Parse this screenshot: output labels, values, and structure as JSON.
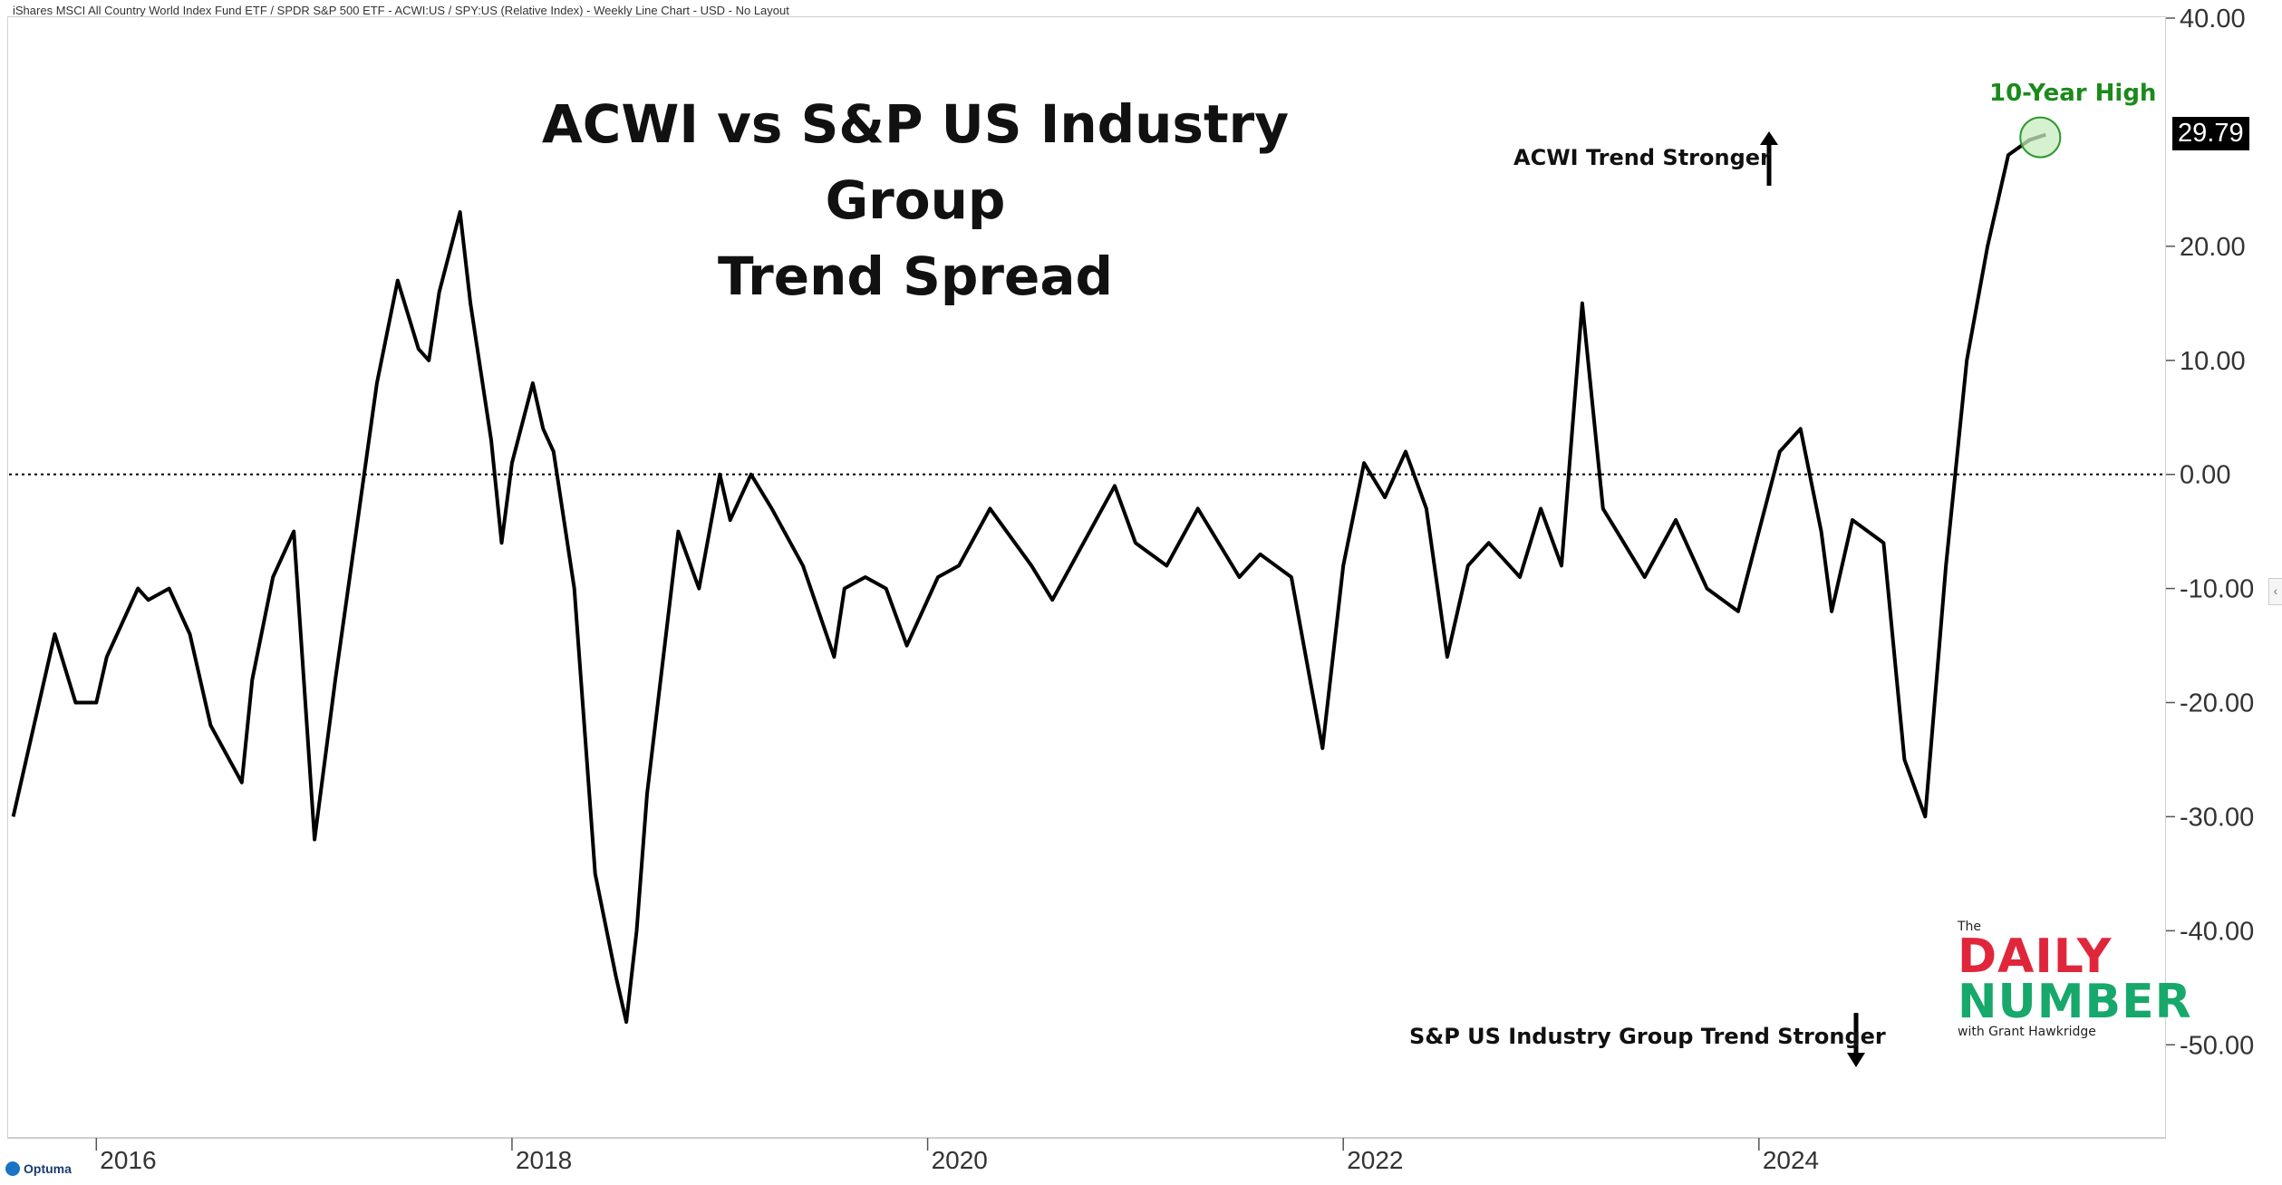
{
  "header": {
    "description": "iShares MSCI All Country World Index Fund ETF / SPDR S&P 500 ETF - ACWI:US / SPY:US (Relative Index) - Weekly Line Chart - USD - No Layout"
  },
  "footer": {
    "brand": "Optuma"
  },
  "annotations": {
    "up_text": "ACWI Trend Stronger",
    "down_text": "S&P US Industry Group Trend Stronger",
    "high_label": "10-Year High",
    "last_value": "29.79"
  },
  "branding": {
    "the": "The",
    "daily": "DAILY",
    "number": "NUMBER",
    "with": "with Grant Hawkridge"
  },
  "colors": {
    "line": "#000000",
    "high_marker": "#1b8a1b",
    "daily": "#e0263b",
    "number": "#17a86b"
  },
  "chart_data": {
    "type": "line",
    "title": [
      "ACWI vs S&P US Industry Group",
      "Trend Spread"
    ],
    "xlabel": "",
    "ylabel": "",
    "ylim": [
      -58,
      40
    ],
    "yticks": [
      "40.00",
      "20.00",
      "10.00",
      "0.00",
      "-10.00",
      "-20.00",
      "-30.00",
      "-40.00",
      "-50.00"
    ],
    "ytick_values": [
      40,
      20,
      10,
      0,
      -10,
      -20,
      -30,
      -40,
      -50
    ],
    "xticks": [
      "2016",
      "2018",
      "2020",
      "2022",
      "2024"
    ],
    "xtick_values": [
      2016.0,
      2018.0,
      2020.0,
      2022.0,
      2024.0
    ],
    "xlim": [
      2015.58,
      2025.95
    ],
    "zero_line": "dotted",
    "series": [
      {
        "name": "",
        "x": [
          2015.6,
          2015.7,
          2015.8,
          2015.9,
          2016.0,
          2016.05,
          2016.2,
          2016.25,
          2016.35,
          2016.45,
          2016.55,
          2016.7,
          2016.75,
          2016.85,
          2016.95,
          2017.05,
          2017.15,
          2017.25,
          2017.35,
          2017.45,
          2017.55,
          2017.6,
          2017.65,
          2017.75,
          2017.8,
          2017.9,
          2017.95,
          2018.0,
          2018.1,
          2018.15,
          2018.2,
          2018.3,
          2018.4,
          2018.5,
          2018.55,
          2018.6,
          2018.65,
          2018.8,
          2018.9,
          2019.0,
          2019.05,
          2019.15,
          2019.25,
          2019.4,
          2019.55,
          2019.6,
          2019.7,
          2019.8,
          2019.9,
          2020.05,
          2020.15,
          2020.3,
          2020.5,
          2020.6,
          2020.75,
          2020.9,
          2021.0,
          2021.15,
          2021.3,
          2021.5,
          2021.6,
          2021.75,
          2021.9,
          2022.0,
          2022.1,
          2022.2,
          2022.3,
          2022.4,
          2022.5,
          2022.6,
          2022.7,
          2022.85,
          2022.95,
          2023.05,
          2023.15,
          2023.25,
          2023.35,
          2023.45,
          2023.6,
          2023.75,
          2023.9,
          2024.0,
          2024.1,
          2024.2,
          2024.3,
          2024.35,
          2024.45,
          2024.6,
          2024.7,
          2024.8,
          2024.9,
          2025.0,
          2025.1,
          2025.2,
          2025.3,
          2025.38
        ],
        "y": [
          -30,
          -22,
          -14,
          -20,
          -20,
          -16,
          -10,
          -11,
          -10,
          -14,
          -22,
          -27,
          -18,
          -9,
          -5,
          -32,
          -18,
          -5,
          8,
          17,
          11,
          10,
          16,
          23,
          15,
          3,
          -6,
          1,
          8,
          4,
          2,
          -10,
          -35,
          -44,
          -48,
          -40,
          -28,
          -5,
          -10,
          0,
          -4,
          0,
          -3,
          -8,
          -16,
          -10,
          -9,
          -10,
          -15,
          -9,
          -8,
          -3,
          -8,
          -11,
          -6,
          -1,
          -6,
          -8,
          -3,
          -9,
          -7,
          -9,
          -24,
          -8,
          1,
          -2,
          2,
          -3,
          -16,
          -8,
          -6,
          -9,
          -3,
          -8,
          15,
          -3,
          -6,
          -9,
          -4,
          -10,
          -12,
          -5,
          2,
          4,
          -5,
          -12,
          -4,
          -6,
          -25,
          -30,
          -8,
          10,
          20,
          28,
          29.3,
          29.79
        ]
      }
    ]
  }
}
